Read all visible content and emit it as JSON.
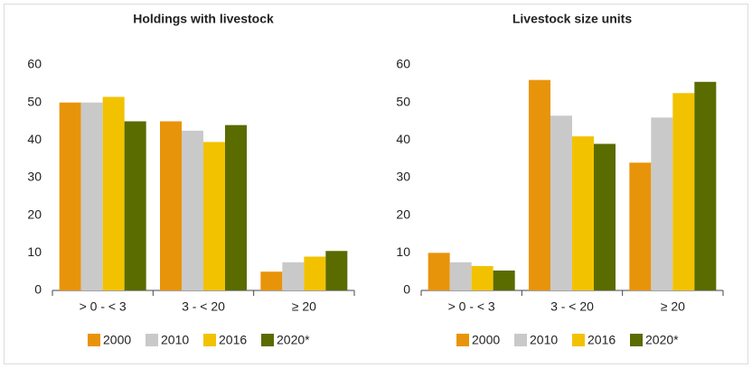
{
  "chart_data": [
    {
      "type": "bar",
      "title": "Holdings with livestock",
      "categories": [
        "> 0 - < 3",
        "3 - < 20",
        "≥ 20"
      ],
      "series": [
        {
          "name": "2000",
          "color": "#e8940a",
          "values": [
            50,
            45,
            5
          ]
        },
        {
          "name": "2010",
          "color": "#c9c9c9",
          "values": [
            50,
            42.5,
            7.5
          ]
        },
        {
          "name": "2016",
          "color": "#f2c200",
          "values": [
            51.5,
            39.5,
            9
          ]
        },
        {
          "name": "2020*",
          "color": "#5a6b00",
          "values": [
            45,
            44,
            10.5
          ]
        }
      ],
      "ylim": [
        0,
        60
      ],
      "yticks": [
        0,
        10,
        20,
        30,
        40,
        50,
        60
      ],
      "grid": false,
      "legend": "bottom"
    },
    {
      "type": "bar",
      "title": "Livestock size units",
      "categories": [
        "> 0 - < 3",
        "3 - < 20",
        "≥ 20"
      ],
      "series": [
        {
          "name": "2000",
          "color": "#e8940a",
          "values": [
            10,
            56,
            34
          ]
        },
        {
          "name": "2010",
          "color": "#c9c9c9",
          "values": [
            7.5,
            46.5,
            46
          ]
        },
        {
          "name": "2016",
          "color": "#f2c200",
          "values": [
            6.5,
            41,
            52.5
          ]
        },
        {
          "name": "2020*",
          "color": "#5a6b00",
          "values": [
            5.3,
            39,
            55.5
          ]
        }
      ],
      "ylim": [
        0,
        60
      ],
      "yticks": [
        0,
        10,
        20,
        30,
        40,
        50,
        60
      ],
      "grid": false,
      "legend": "bottom"
    }
  ]
}
